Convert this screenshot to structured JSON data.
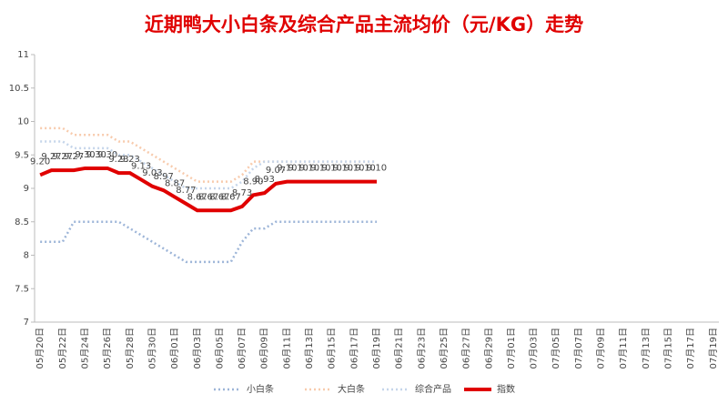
{
  "chart_data": {
    "type": "line",
    "title": "近期鸭大小白条及综合产品主流均价（元/KG）走势",
    "categories": [
      "05月20日",
      null,
      "05月22日",
      null,
      "05月24日",
      null,
      "05月26日",
      null,
      "05月28日",
      null,
      "05月30日",
      null,
      "06月01日",
      null,
      "06月03日",
      null,
      "06月05日",
      null,
      "06月07日",
      null,
      "06月09日",
      null,
      "06月11日",
      null,
      "06月13日",
      null,
      "06月15日",
      null,
      "06月17日",
      null,
      "06月19日",
      null,
      "06月21日",
      null,
      "06月23日",
      null,
      "06月25日",
      null,
      "06月27日",
      null,
      "06月29日",
      null,
      "07月01日",
      null,
      "07月03日",
      null,
      "07月05日",
      null,
      "07月07日",
      null,
      "07月09日",
      null,
      "07月11日",
      null,
      "07月13日",
      null,
      "07月15日",
      null,
      "07月17日",
      null,
      "07月19日"
    ],
    "ylim": [
      7,
      11
    ],
    "yticks": [
      7,
      7.5,
      8,
      8.5,
      9,
      9.5,
      10,
      10.5,
      11
    ],
    "grid": false,
    "series": [
      {
        "name": "小白条",
        "color": "#9db5d8",
        "style": "dotted",
        "values": [
          8.2,
          8.2,
          8.2,
          8.5,
          8.5,
          8.5,
          8.5,
          8.5,
          8.4,
          8.3,
          8.2,
          8.1,
          8.0,
          7.9,
          7.9,
          7.9,
          7.9,
          7.9,
          8.2,
          8.4,
          8.4,
          8.5,
          8.5,
          8.5,
          8.5,
          8.5,
          8.5,
          8.5,
          8.5,
          8.5,
          8.5,
          null,
          null,
          null,
          null,
          null,
          null,
          null,
          null,
          null,
          null,
          null,
          null,
          null,
          null,
          null,
          null,
          null,
          null,
          null,
          null,
          null,
          null,
          null,
          null,
          null,
          null,
          null,
          null,
          null,
          null
        ]
      },
      {
        "name": "大白条",
        "color": "#f8cbad",
        "style": "dotted",
        "values": [
          9.9,
          9.9,
          9.9,
          9.8,
          9.8,
          9.8,
          9.8,
          9.7,
          9.7,
          9.6,
          9.5,
          9.4,
          9.3,
          9.2,
          9.1,
          9.1,
          9.1,
          9.1,
          9.2,
          9.4,
          9.4,
          9.4,
          9.4,
          9.4,
          9.4,
          9.4,
          9.4,
          9.4,
          9.4,
          9.4,
          9.4,
          null,
          null,
          null,
          null,
          null,
          null,
          null,
          null,
          null,
          null,
          null,
          null,
          null,
          null,
          null,
          null,
          null,
          null,
          null,
          null,
          null,
          null,
          null,
          null,
          null,
          null,
          null,
          null,
          null,
          null
        ]
      },
      {
        "name": "综合产品",
        "color": "#c5d5ea",
        "style": "dotted",
        "values": [
          9.7,
          9.7,
          9.7,
          9.6,
          9.6,
          9.6,
          9.6,
          9.5,
          9.5,
          9.4,
          9.3,
          9.2,
          9.1,
          9.0,
          9.0,
          9.0,
          9.0,
          9.0,
          9.1,
          9.3,
          9.4,
          9.4,
          9.4,
          9.4,
          9.4,
          9.4,
          9.4,
          9.4,
          9.4,
          9.4,
          9.4,
          null,
          null,
          null,
          null,
          null,
          null,
          null,
          null,
          null,
          null,
          null,
          null,
          null,
          null,
          null,
          null,
          null,
          null,
          null,
          null,
          null,
          null,
          null,
          null,
          null,
          null,
          null,
          null,
          null,
          null
        ]
      },
      {
        "name": "指数",
        "color": "#e00000",
        "style": "solid",
        "values": [
          9.2,
          9.27,
          9.27,
          9.27,
          9.3,
          9.3,
          9.3,
          9.23,
          9.23,
          9.13,
          9.03,
          8.97,
          8.87,
          8.77,
          8.67,
          8.67,
          8.67,
          8.67,
          8.73,
          8.9,
          8.93,
          9.07,
          9.1,
          9.1,
          9.1,
          9.1,
          9.1,
          9.1,
          9.1,
          9.1,
          9.1,
          null,
          null,
          null,
          null,
          null,
          null,
          null,
          null,
          null,
          null,
          null,
          null,
          null,
          null,
          null,
          null,
          null,
          null,
          null,
          null,
          null,
          null,
          null,
          null,
          null,
          null,
          null,
          null,
          null,
          null
        ],
        "value_labels": [
          "9.20",
          "9.27",
          "9.27",
          "9.27",
          "9.30",
          "9.30",
          "9.30",
          "9.23",
          "9.23",
          "9.13",
          "9.03",
          "8.97",
          "8.87",
          "8.77",
          "8.67",
          "8.67",
          "8.67",
          "8.67",
          "8.73",
          "8.90",
          "8.93",
          "9.07",
          "9.10",
          "9.10",
          "9.10",
          "9.10",
          "9.10",
          "9.10",
          "9.10",
          "9.10",
          "9.10",
          null,
          null,
          null,
          null,
          null,
          null,
          null,
          null,
          null,
          null,
          null,
          null,
          null,
          null,
          null,
          null,
          null,
          null,
          null,
          null,
          null,
          null,
          null,
          null,
          null,
          null,
          null,
          null,
          null,
          null
        ]
      }
    ]
  }
}
